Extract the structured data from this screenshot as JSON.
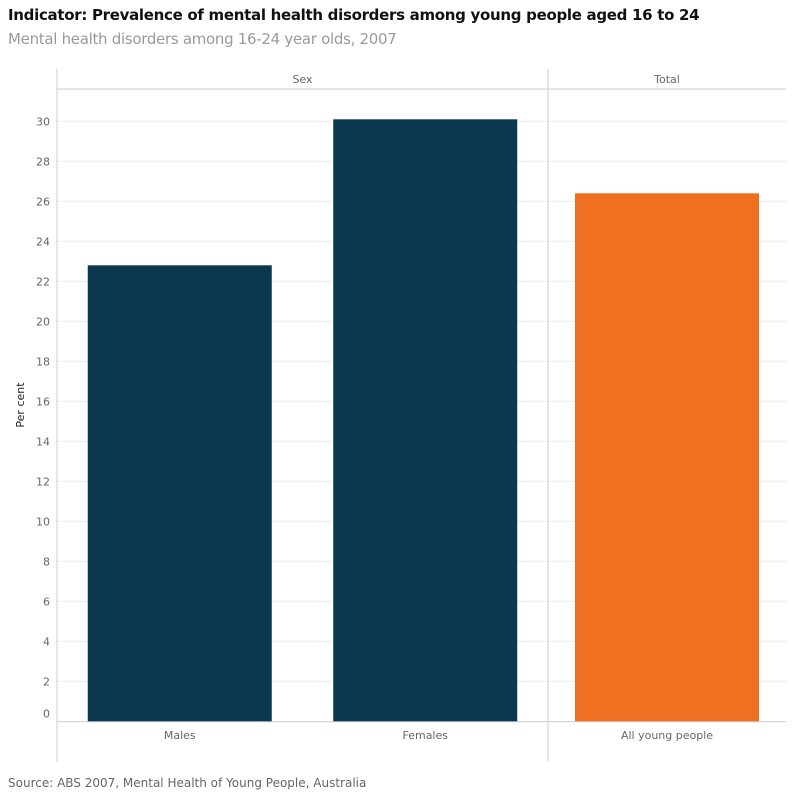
{
  "title": "Indicator: Prevalence of mental health disorders among young people aged 16 to 24",
  "subtitle": "Mental health disorders among 16-24 year olds, 2007",
  "source": "Source:  ABS 2007, Mental Health of Young People, Australia",
  "chart_data": {
    "type": "bar",
    "panels": [
      {
        "header": "Sex",
        "categories": [
          "Males",
          "Females"
        ],
        "values": [
          22.8,
          30.1
        ],
        "color": "#0b374f"
      },
      {
        "header": "Total",
        "categories": [
          "All young people"
        ],
        "values": [
          26.4
        ],
        "color": "#f07022"
      }
    ],
    "ylabel": "Per cent",
    "ylim": [
      0,
      31
    ],
    "yticks": [
      0,
      2,
      4,
      6,
      8,
      10,
      12,
      14,
      16,
      18,
      20,
      22,
      24,
      26,
      28,
      30
    ],
    "grid": true
  }
}
